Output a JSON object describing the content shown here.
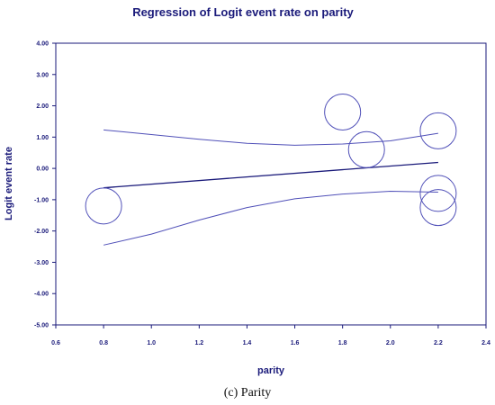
{
  "caption": "(c) Parity",
  "chart_data": {
    "type": "scatter",
    "title": "Regression of Logit event rate on parity",
    "xlabel": "parity",
    "ylabel": "Logit event rate",
    "xlim": [
      0.6,
      2.4
    ],
    "ylim": [
      -5.0,
      4.0
    ],
    "x_ticks": [
      "0.6",
      "0.8",
      "1.0",
      "1.2",
      "1.4",
      "1.6",
      "1.8",
      "2.0",
      "2.2",
      "2.4"
    ],
    "y_ticks": [
      "4.00",
      "3.00",
      "2.00",
      "1.00",
      "0.00",
      "-1.00",
      "-2.00",
      "-3.00",
      "-4.00",
      "-5.00"
    ],
    "grid": false,
    "points": [
      {
        "x": 0.8,
        "y": -1.2,
        "size": 1.0
      },
      {
        "x": 1.8,
        "y": 1.8,
        "size": 1.0
      },
      {
        "x": 1.9,
        "y": 0.6,
        "size": 1.0
      },
      {
        "x": 2.2,
        "y": 1.2,
        "size": 1.0
      },
      {
        "x": 2.2,
        "y": -0.8,
        "size": 1.0
      },
      {
        "x": 2.2,
        "y": -1.25,
        "size": 1.0
      }
    ],
    "regression_line": {
      "x": [
        0.8,
        2.2
      ],
      "y": [
        -0.62,
        0.19
      ]
    },
    "upper_ci": {
      "x": [
        0.8,
        1.0,
        1.2,
        1.4,
        1.6,
        1.8,
        2.0,
        2.2
      ],
      "y": [
        1.23,
        1.08,
        0.93,
        0.8,
        0.74,
        0.78,
        0.88,
        1.12
      ]
    },
    "lower_ci": {
      "x": [
        0.8,
        1.0,
        1.2,
        1.4,
        1.6,
        1.8,
        2.0,
        2.2
      ],
      "y": [
        -2.45,
        -2.1,
        -1.65,
        -1.25,
        -0.97,
        -0.82,
        -0.73,
        -0.76
      ]
    },
    "colors": {
      "text": "#1a1a7a",
      "axis": "#1a1a7a",
      "regression": "#1a1a7a",
      "ci": "#5050b8",
      "marker": "#5050b8"
    }
  }
}
